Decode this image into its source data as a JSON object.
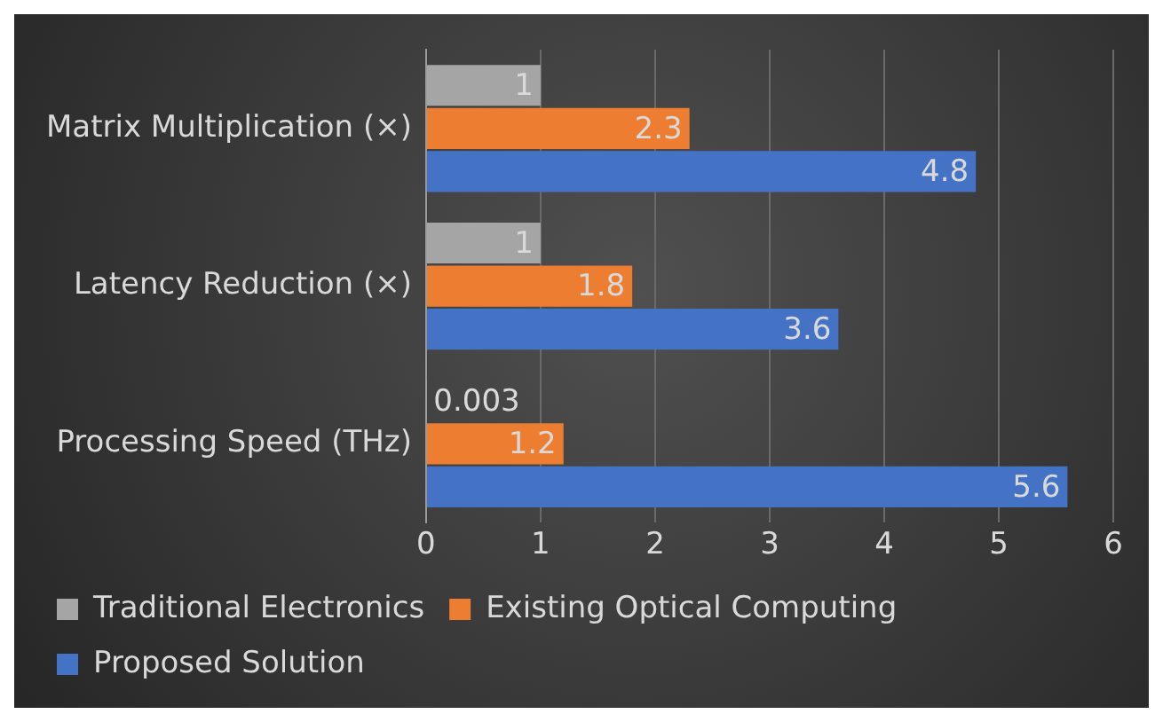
{
  "chart_data": {
    "type": "bar",
    "orientation": "horizontal",
    "categories": [
      "Matrix Multiplication (×)",
      "Latency Reduction (×)",
      "Processing Speed (THz)"
    ],
    "series": [
      {
        "name": "Traditional Electronics",
        "color": "#a5a5a5",
        "values": [
          1,
          1,
          0.003
        ]
      },
      {
        "name": "Existing Optical Computing",
        "color": "#ed7d31",
        "values": [
          2.3,
          1.8,
          1.2
        ]
      },
      {
        "name": "Proposed Solution",
        "color": "#4472c4",
        "values": [
          4.8,
          3.6,
          5.6
        ]
      }
    ],
    "xlim": [
      0,
      6
    ],
    "xticks": [
      0,
      1,
      2,
      3,
      4,
      5,
      6
    ],
    "grid": "x",
    "legend": "bottom",
    "data_labels": true
  }
}
